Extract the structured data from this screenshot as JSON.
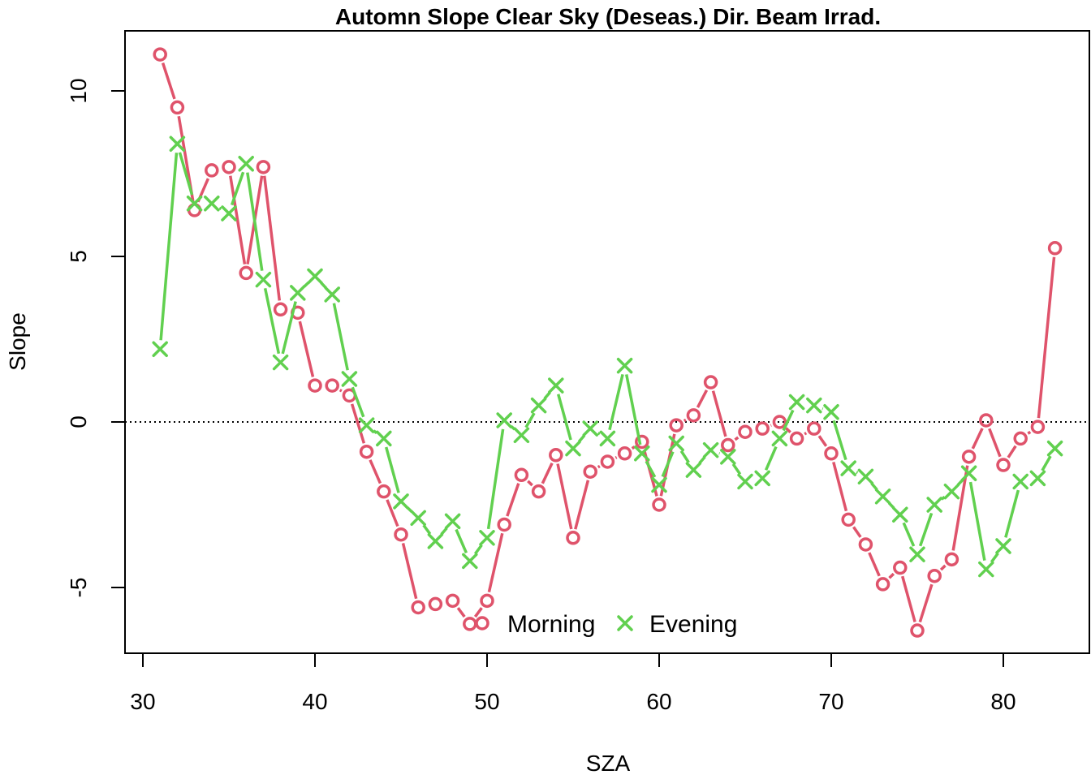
{
  "chart_data": {
    "type": "line",
    "title": "Automn Slope Clear Sky (Deseas.) Dir. Beam Irrad.",
    "xlabel": "SZA",
    "ylabel": "Slope",
    "xlim": [
      29,
      84
    ],
    "ylim": [
      -7,
      11.8
    ],
    "x_ticks": [
      30,
      40,
      50,
      60,
      70,
      80
    ],
    "y_ticks": [
      -5,
      0,
      5,
      10
    ],
    "reference_line": {
      "y": 0,
      "style": "dotted"
    },
    "legend_position": "bottom-center",
    "series": [
      {
        "name": "Morning",
        "color": "#DF536B",
        "marker": "circle",
        "x": [
          31,
          32,
          33,
          34,
          35,
          36,
          37,
          38,
          39,
          40,
          41,
          42,
          43,
          44,
          45,
          46,
          47,
          48,
          49,
          50,
          51,
          52,
          53,
          54,
          55,
          56,
          57,
          58,
          59,
          60,
          61,
          62,
          63,
          64,
          65,
          66,
          67,
          68,
          69,
          70,
          71,
          72,
          73,
          74,
          75,
          76,
          77,
          78,
          79,
          80,
          81,
          82,
          83
        ],
        "values": [
          11.1,
          9.5,
          6.4,
          7.6,
          7.7,
          4.5,
          7.7,
          3.4,
          3.3,
          1.1,
          1.1,
          0.8,
          -0.9,
          -2.1,
          -3.4,
          -5.6,
          -5.5,
          -5.4,
          -6.1,
          -5.4,
          -3.1,
          -1.6,
          -2.1,
          -1.0,
          -3.5,
          -1.5,
          -1.2,
          -0.95,
          -0.6,
          -2.5,
          -0.1,
          0.2,
          1.2,
          -0.7,
          -0.3,
          -0.2,
          0.0,
          -0.5,
          -0.2,
          -0.95,
          -2.95,
          -3.7,
          -4.9,
          -4.4,
          -6.3,
          -4.65,
          -4.15,
          -1.05,
          0.05,
          -1.3,
          -0.5,
          -0.15,
          5.25
        ]
      },
      {
        "name": "Evening",
        "color": "#61D04F",
        "marker": "x",
        "x": [
          31,
          32,
          33,
          34,
          35,
          36,
          37,
          38,
          39,
          40,
          41,
          42,
          43,
          44,
          45,
          46,
          47,
          48,
          49,
          50,
          51,
          52,
          53,
          54,
          55,
          56,
          57,
          58,
          59,
          60,
          61,
          62,
          63,
          64,
          65,
          66,
          67,
          68,
          69,
          70,
          71,
          72,
          73,
          74,
          75,
          76,
          77,
          78,
          79,
          80,
          81,
          82,
          83
        ],
        "values": [
          2.2,
          8.4,
          6.6,
          6.6,
          6.3,
          7.8,
          4.3,
          1.8,
          3.9,
          4.4,
          3.85,
          1.3,
          -0.1,
          -0.5,
          -2.4,
          -2.9,
          -3.6,
          -3.0,
          -4.2,
          -3.5,
          0.05,
          -0.4,
          0.5,
          1.1,
          -0.8,
          -0.2,
          -0.5,
          1.7,
          -0.95,
          -1.9,
          -0.65,
          -1.45,
          -0.85,
          -1.05,
          -1.8,
          -1.7,
          -0.5,
          0.6,
          0.5,
          0.3,
          -1.4,
          -1.65,
          -2.25,
          -2.8,
          -4.0,
          -2.5,
          -2.1,
          -1.55,
          -4.45,
          -3.75,
          -1.8,
          -1.7,
          -0.8
        ]
      }
    ]
  }
}
